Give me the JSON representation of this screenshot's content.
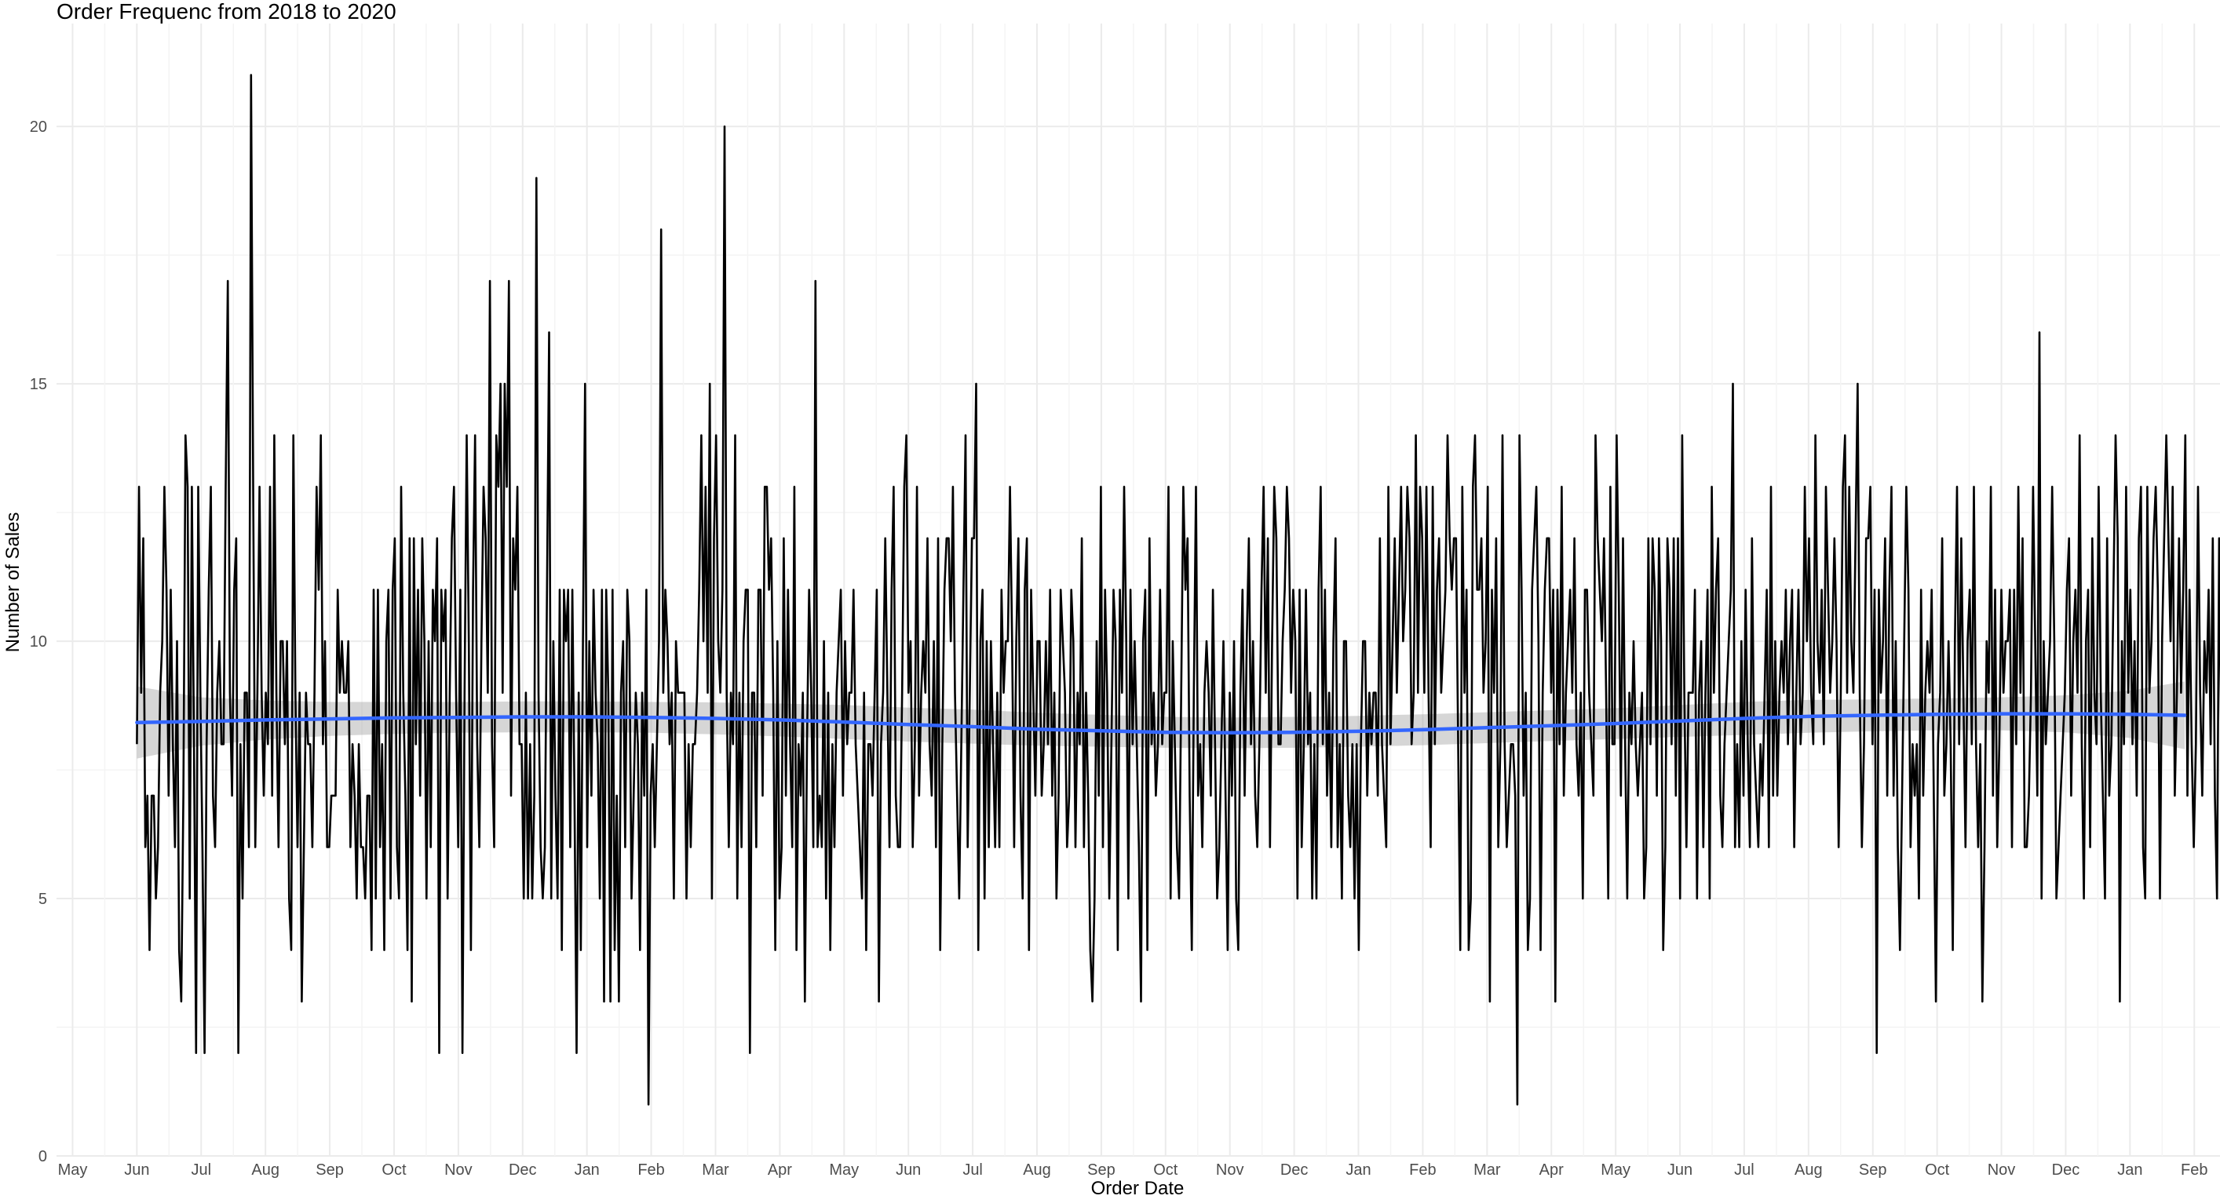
{
  "chart_data": {
    "type": "line",
    "title": "Order Frequenc from 2018 to 2020",
    "xlabel": "Order Date",
    "ylabel": "Number of Sales",
    "grid": true,
    "legend": "none",
    "x_tick_labels": [
      "May",
      "Jun",
      "Jul",
      "Aug",
      "Sep",
      "Oct",
      "Nov",
      "Dec",
      "Jan",
      "Feb",
      "Mar",
      "Apr",
      "May",
      "Jun",
      "Jul",
      "Aug",
      "Sep",
      "Oct",
      "Nov",
      "Dec",
      "Jan",
      "Feb",
      "Mar",
      "Apr",
      "May",
      "Jun",
      "Jul",
      "Aug",
      "Sep",
      "Oct",
      "Nov",
      "Dec",
      "Jan",
      "Feb"
    ],
    "xlim_months": [
      -0.25,
      33.4
    ],
    "ylim": [
      0,
      22
    ],
    "y_ticks": [
      0,
      5,
      10,
      15,
      20
    ],
    "y_tick_labels": [
      "0",
      "5",
      "10",
      "15",
      "20"
    ],
    "series": [
      {
        "kind": "daily",
        "color": "#000000",
        "start_month": 1,
        "step_months": 0.03288,
        "values": [
          8,
          13,
          9,
          12,
          6,
          7,
          4,
          7,
          7,
          5,
          6,
          9,
          10,
          13,
          11,
          7,
          11,
          8,
          6,
          10,
          4,
          3,
          7,
          14,
          13,
          5,
          13,
          8,
          2,
          13,
          9,
          6,
          2,
          8,
          11,
          13,
          7,
          6,
          9,
          10,
          8,
          8,
          13,
          17,
          9,
          7,
          11,
          12,
          2,
          8,
          5,
          9,
          9,
          6,
          21,
          13,
          6,
          9,
          13,
          9,
          7,
          9,
          8,
          13,
          7,
          14,
          9,
          6,
          10,
          10,
          8,
          10,
          5,
          4,
          14,
          9,
          6,
          9,
          3,
          6,
          9,
          8,
          8,
          6,
          9,
          13,
          11,
          14,
          8,
          10,
          6,
          6,
          7,
          7,
          7,
          11,
          9,
          10,
          9,
          9,
          10,
          6,
          8,
          7,
          5,
          8,
          6,
          6,
          5,
          7,
          7,
          4,
          11,
          5,
          11,
          6,
          8,
          4,
          10,
          11,
          5,
          11,
          12,
          6,
          5,
          13,
          9,
          7,
          4,
          12,
          3,
          12,
          8,
          11,
          7,
          12,
          10,
          5,
          10,
          6,
          11,
          10,
          12,
          2,
          11,
          10,
          11,
          5,
          9,
          12,
          13,
          9,
          6,
          11,
          2,
          9,
          14,
          10,
          4,
          11,
          14,
          8,
          6,
          10,
          13,
          12,
          9,
          17,
          8,
          6,
          14,
          13,
          15,
          9,
          15,
          13,
          17,
          7,
          12,
          11,
          13,
          8,
          8,
          5,
          9,
          5,
          8,
          5,
          7,
          19,
          9,
          6,
          5,
          6,
          11,
          16,
          5,
          10,
          7,
          5,
          11,
          4,
          11,
          10,
          11,
          6,
          11,
          7,
          2,
          9,
          4,
          10,
          15,
          6,
          10,
          7,
          11,
          9,
          8,
          5,
          11,
          3,
          11,
          9,
          3,
          11,
          4,
          7,
          3,
          9,
          10,
          6,
          11,
          10,
          5,
          7,
          9,
          8,
          4,
          9,
          7,
          11,
          1,
          7,
          8,
          6,
          8,
          10,
          18,
          9,
          11,
          10,
          8,
          9,
          5,
          10,
          9,
          9,
          9,
          9,
          5,
          8,
          6,
          8,
          8,
          9,
          11,
          14,
          10,
          13,
          9,
          15,
          5,
          12,
          14,
          10,
          9,
          11,
          20,
          9,
          6,
          9,
          8,
          14,
          5,
          9,
          6,
          10,
          11,
          11,
          2,
          9,
          9,
          6,
          11,
          11,
          7,
          13,
          13,
          11,
          12,
          9,
          4,
          10,
          5,
          6,
          12,
          7,
          11,
          8,
          6,
          13,
          4,
          8,
          7,
          9,
          3,
          8,
          11,
          9,
          6,
          17,
          6,
          7,
          6,
          10,
          5,
          9,
          4,
          8,
          6,
          9,
          10,
          11,
          7,
          10,
          8,
          9,
          9,
          11,
          8,
          7,
          6,
          5,
          9,
          4,
          8,
          8,
          7,
          9,
          11,
          3,
          8,
          9,
          12,
          9,
          6,
          11,
          13,
          7,
          6,
          6,
          9,
          13,
          14,
          9,
          10,
          6,
          8,
          13,
          7,
          9,
          10,
          9,
          12,
          8,
          7,
          10,
          6,
          12,
          4,
          8,
          11,
          12,
          12,
          10,
          13,
          9,
          7,
          5,
          8,
          11,
          14,
          6,
          9,
          12,
          12,
          15,
          4,
          10,
          11,
          5,
          10,
          6,
          10,
          8,
          6,
          9,
          6,
          11,
          9,
          10,
          10,
          13,
          10,
          6,
          10,
          12,
          7,
          5,
          11,
          12,
          4,
          11,
          9,
          7,
          10,
          10,
          7,
          8,
          10,
          8,
          11,
          7,
          9,
          5,
          7,
          11,
          10,
          9,
          6,
          7,
          11,
          10,
          6,
          9,
          8,
          12,
          6,
          9,
          7,
          4,
          3,
          5,
          10,
          7,
          13,
          6,
          11,
          9,
          5,
          8,
          11,
          10,
          4,
          11,
          9,
          13,
          10,
          5,
          11,
          8,
          10,
          8,
          6,
          3,
          10,
          11,
          4,
          12,
          8,
          9,
          7,
          8,
          11,
          8,
          9,
          9,
          13,
          5,
          10,
          8,
          6,
          5,
          9,
          13,
          11,
          12,
          7,
          4,
          9,
          13,
          7,
          8,
          6,
          9,
          10,
          9,
          7,
          11,
          8,
          5,
          6,
          8,
          10,
          7,
          4,
          9,
          7,
          10,
          5,
          4,
          9,
          11,
          7,
          10,
          12,
          8,
          10,
          7,
          6,
          8,
          11,
          13,
          9,
          12,
          6,
          10,
          13,
          12,
          8,
          8,
          10,
          11,
          13,
          12,
          9,
          11,
          10,
          5,
          11,
          6,
          8,
          11,
          8,
          9,
          5,
          8,
          5,
          11,
          13,
          8,
          11,
          7,
          9,
          6,
          10,
          12,
          6,
          8,
          5,
          10,
          10,
          7,
          6,
          8,
          5,
          8,
          4,
          8,
          10,
          10,
          7,
          9,
          8,
          9,
          9,
          7,
          12,
          8,
          7,
          6,
          13,
          8,
          10,
          12,
          9,
          11,
          13,
          10,
          11,
          13,
          12,
          8,
          9,
          14,
          9,
          13,
          12,
          9,
          13,
          9,
          6,
          13,
          8,
          11,
          12,
          9,
          10,
          11,
          14,
          12,
          11,
          12,
          12,
          8,
          4,
          13,
          9,
          11,
          4,
          5,
          13,
          14,
          11,
          11,
          12,
          9,
          10,
          13,
          3,
          11,
          9,
          12,
          6,
          8,
          14,
          8,
          6,
          7,
          8,
          8,
          7,
          1,
          14,
          11,
          7,
          9,
          4,
          5,
          11,
          12,
          13,
          10,
          4,
          9,
          11,
          12,
          12,
          9,
          11,
          3,
          11,
          8,
          13,
          7,
          9,
          10,
          11,
          9,
          12,
          8,
          7,
          9,
          5,
          11,
          11,
          9,
          8,
          7,
          14,
          12,
          11,
          10,
          12,
          9,
          5,
          13,
          8,
          8,
          14,
          11,
          7,
          12,
          8,
          5,
          9,
          8,
          10,
          8,
          7,
          8,
          9,
          5,
          6,
          12,
          8,
          12,
          11,
          7,
          12,
          10,
          4,
          6,
          12,
          11,
          8,
          12,
          7,
          12,
          5,
          14,
          9,
          6,
          9,
          9,
          9,
          11,
          5,
          9,
          10,
          6,
          9,
          11,
          5,
          13,
          9,
          11,
          12,
          7,
          6,
          8,
          9,
          10,
          11,
          15,
          6,
          8,
          6,
          10,
          7,
          11,
          8,
          6,
          12,
          8,
          7,
          6,
          8,
          7,
          9,
          11,
          6,
          13,
          7,
          10,
          7,
          9,
          10,
          9,
          11,
          8,
          10,
          11,
          6,
          9,
          11,
          8,
          9,
          13,
          10,
          12,
          9,
          8,
          14,
          10,
          9,
          11,
          8,
          13,
          11,
          9,
          10,
          12,
          10,
          6,
          9,
          13,
          14,
          9,
          13,
          10,
          9,
          12,
          15,
          9,
          6,
          8,
          12,
          12,
          13,
          8,
          11,
          2,
          11,
          9,
          10,
          12,
          7,
          11,
          13,
          7,
          10,
          6,
          4,
          7,
          10,
          13,
          11,
          6,
          8,
          7,
          8,
          5,
          11,
          7,
          9,
          10,
          9,
          11,
          7,
          3,
          8,
          9,
          12,
          7,
          8,
          10,
          8,
          4,
          10,
          13,
          8,
          12,
          9,
          6,
          10,
          11,
          8,
          13,
          8,
          6,
          8,
          3,
          6,
          10,
          9,
          13,
          7,
          11,
          6,
          8,
          11,
          9,
          10,
          10,
          11,
          6,
          11,
          8,
          13,
          9,
          12,
          6,
          6,
          7,
          9,
          13,
          10,
          7,
          16,
          5,
          10,
          8,
          9,
          10,
          13,
          10,
          5,
          6,
          7,
          8,
          9,
          11,
          12,
          7,
          10,
          11,
          9,
          14,
          8,
          5,
          10,
          11,
          6,
          12,
          9,
          8,
          13,
          9,
          7,
          5,
          12,
          7,
          8,
          11,
          14,
          12,
          3,
          10,
          8,
          13,
          9,
          11,
          8,
          10,
          7,
          12,
          13,
          6,
          5,
          13,
          9,
          10,
          12,
          13,
          11,
          5,
          10,
          12,
          14,
          12,
          10,
          13,
          7,
          9,
          12,
          9,
          11,
          14,
          7,
          11,
          8,
          6,
          8,
          13,
          9,
          7,
          10,
          9,
          11,
          8,
          12,
          7,
          5,
          12,
          8,
          11,
          9,
          14,
          10,
          6,
          13,
          12,
          11,
          9,
          12,
          8,
          10,
          9,
          11,
          5,
          12,
          6,
          8,
          13,
          13,
          7,
          11,
          7,
          10,
          14,
          12,
          14,
          10,
          12,
          7,
          13,
          6,
          8,
          11,
          9,
          7,
          13,
          9,
          8,
          14,
          12,
          9,
          11,
          10,
          13,
          8,
          6,
          12,
          8,
          9,
          11,
          13,
          12,
          7,
          10,
          9,
          11,
          13,
          12,
          8,
          10,
          9,
          12,
          11,
          7,
          5
        ]
      },
      {
        "kind": "smooth",
        "color": "#3366FF",
        "band_color": "#999999",
        "x_months": [
          1.0,
          2,
          3,
          4,
          5,
          6,
          7,
          8,
          9,
          10,
          11,
          12,
          13,
          14,
          15,
          16,
          17,
          18,
          19,
          20,
          21,
          22,
          23,
          24,
          25,
          26,
          27,
          28,
          29,
          30,
          31,
          32,
          32.85
        ],
        "y": [
          8.42,
          8.44,
          8.47,
          8.49,
          8.51,
          8.52,
          8.53,
          8.53,
          8.52,
          8.5,
          8.47,
          8.43,
          8.38,
          8.34,
          8.29,
          8.26,
          8.23,
          8.22,
          8.23,
          8.25,
          8.28,
          8.32,
          8.36,
          8.4,
          8.45,
          8.5,
          8.54,
          8.56,
          8.58,
          8.59,
          8.59,
          8.58,
          8.56
        ],
        "lower": [
          7.72,
          7.97,
          8.09,
          8.16,
          8.2,
          8.22,
          8.23,
          8.23,
          8.22,
          8.19,
          8.15,
          8.1,
          8.05,
          8.01,
          7.97,
          7.95,
          7.93,
          7.92,
          7.93,
          7.95,
          7.98,
          8.02,
          8.06,
          8.1,
          8.14,
          8.18,
          8.22,
          8.25,
          8.27,
          8.27,
          8.23,
          8.12,
          7.9
        ],
        "upper": [
          9.12,
          8.91,
          8.85,
          8.82,
          8.82,
          8.82,
          8.83,
          8.83,
          8.82,
          8.81,
          8.79,
          8.76,
          8.71,
          8.67,
          8.61,
          8.57,
          8.53,
          8.52,
          8.53,
          8.55,
          8.58,
          8.62,
          8.66,
          8.7,
          8.76,
          8.82,
          8.86,
          8.87,
          8.89,
          8.91,
          8.95,
          9.04,
          9.22
        ]
      }
    ]
  }
}
